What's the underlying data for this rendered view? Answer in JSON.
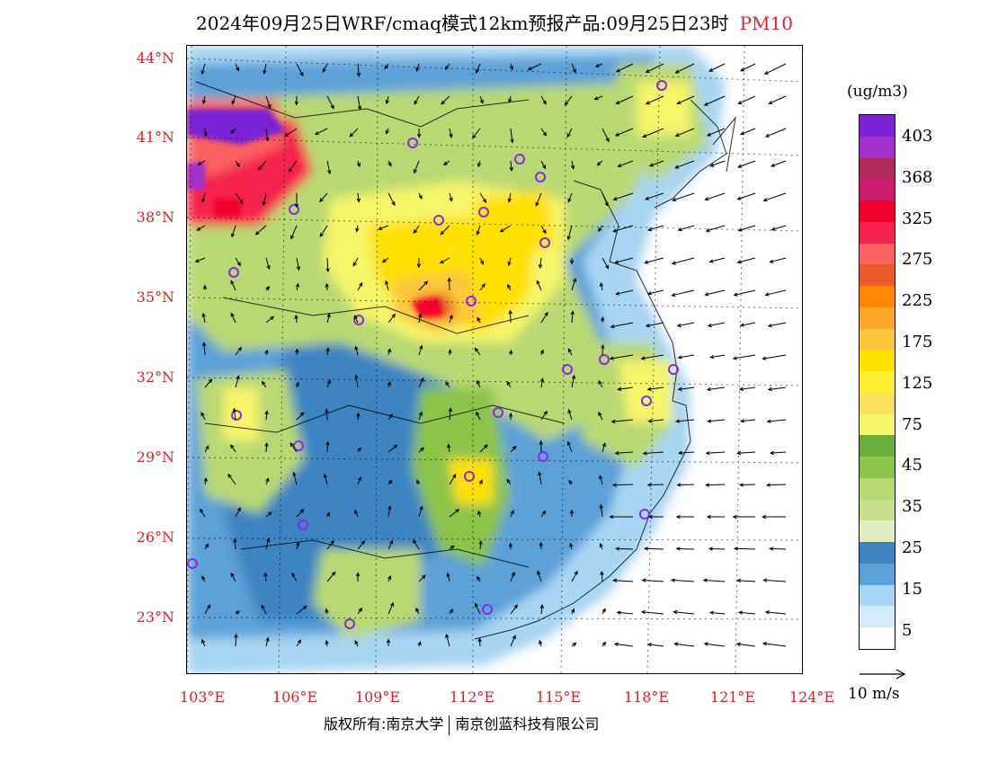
{
  "title": {
    "main": "2024年09月25日WRF/cmaq模式12km预报产品:09月25日23时",
    "species": "PM10"
  },
  "colors": {
    "title_species": "#e0202a",
    "axis_labels": "#e0202a",
    "city_marker": "#8a2be2"
  },
  "map": {
    "lat_labels": [
      "44°N",
      "41°N",
      "38°N",
      "35°N",
      "32°N",
      "29°N",
      "26°N",
      "23°N"
    ],
    "lon_labels": [
      "103°E",
      "106°E",
      "109°E",
      "112°E",
      "115°E",
      "118°E",
      "121°E",
      "124°E"
    ]
  },
  "legend": {
    "unit": "(ug/m3)",
    "labels": [
      "403",
      "368",
      "325",
      "275",
      "225",
      "175",
      "125",
      "75",
      "45",
      "35",
      "25",
      "15",
      "5"
    ],
    "colors": [
      "#7b22d6",
      "#a12fcb",
      "#b02a5e",
      "#cc1a6e",
      "#f2002b",
      "#f5224d",
      "#fb6060",
      "#ea5a2a",
      "#ff8800",
      "#fba72b",
      "#fcc73a",
      "#ffe100",
      "#ffef30",
      "#fbe05a",
      "#f5f56a",
      "#6bae3a",
      "#8cc448",
      "#b8d873",
      "#c7df8c",
      "#e1edbf",
      "#3d85c2",
      "#5ba0d8",
      "#a7d5f2",
      "#d2ebf9",
      "#ffffff"
    ]
  },
  "wind_reference": {
    "label": "10 m/s"
  },
  "footer": {
    "left": "版权所有:南京大学",
    "right": "南京创蓝科技有限公司"
  }
}
